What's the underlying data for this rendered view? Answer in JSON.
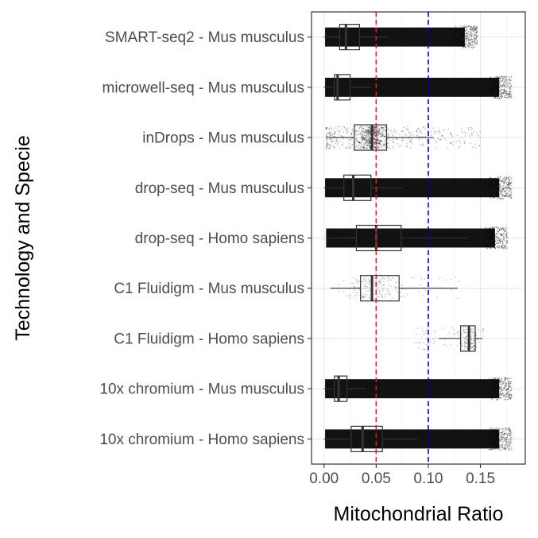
{
  "chart_data": {
    "type": "boxplot-jitter",
    "title": "",
    "xlabel": "Mitochondrial Ratio",
    "ylabel": "Technology and Specie",
    "xlim": [
      -0.012,
      0.193
    ],
    "xticks": [
      0.0,
      0.05,
      0.1,
      0.15
    ],
    "xtick_labels": [
      "0.00",
      "0.05",
      "0.10",
      "0.15"
    ],
    "grid": true,
    "legend": "none",
    "reference_lines": [
      {
        "x": 0.05,
        "color": "#e41a1c",
        "style": "dashed"
      },
      {
        "x": 0.1,
        "color": "#0000cc",
        "style": "dashed"
      }
    ],
    "categories": [
      "SMART-seq2 - Mus musculus",
      "microwell-seq - Mus musculus",
      "inDrops - Mus musculus",
      "drop-seq - Mus musculus",
      "drop-seq - Homo sapiens",
      "C1 Fluidigm - Mus musculus",
      "C1 Fluidigm - Homo sapiens",
      "10x chromium - Mus musculus",
      "10x chromium - Homo sapiens"
    ],
    "boxes": [
      {
        "q1": 0.015,
        "median": 0.021,
        "q3": 0.034,
        "whisker_low": 0.0,
        "whisker_high": 0.062,
        "points_min": 0.001,
        "points_max": 0.147,
        "density": "dense"
      },
      {
        "q1": 0.01,
        "median": 0.013,
        "q3": 0.025,
        "whisker_low": 0.0,
        "whisker_high": 0.045,
        "points_min": 0.001,
        "points_max": 0.18,
        "density": "dense"
      },
      {
        "q1": 0.029,
        "median": 0.046,
        "q3": 0.06,
        "whisker_low": 0.003,
        "whisker_high": 0.105,
        "points_min": 0.002,
        "points_max": 0.15,
        "density": "medium"
      },
      {
        "q1": 0.019,
        "median": 0.028,
        "q3": 0.045,
        "whisker_low": 0.0,
        "whisker_high": 0.075,
        "points_min": 0.001,
        "points_max": 0.18,
        "density": "dense"
      },
      {
        "q1": 0.031,
        "median": 0.05,
        "q3": 0.074,
        "whisker_low": 0.003,
        "whisker_high": 0.138,
        "points_min": 0.002,
        "points_max": 0.176,
        "density": "dense"
      },
      {
        "q1": 0.035,
        "median": 0.046,
        "q3": 0.072,
        "whisker_low": 0.006,
        "whisker_high": 0.128,
        "points_min": 0.005,
        "points_max": 0.13,
        "density": "sparse"
      },
      {
        "q1": 0.131,
        "median": 0.139,
        "q3": 0.145,
        "whisker_low": 0.11,
        "whisker_high": 0.152,
        "points_min": 0.086,
        "points_max": 0.153,
        "density": "sparse"
      },
      {
        "q1": 0.01,
        "median": 0.014,
        "q3": 0.022,
        "whisker_low": 0.0,
        "whisker_high": 0.04,
        "points_min": 0.001,
        "points_max": 0.18,
        "density": "dense"
      },
      {
        "q1": 0.026,
        "median": 0.037,
        "q3": 0.056,
        "whisker_low": 0.0,
        "whisker_high": 0.09,
        "points_min": 0.001,
        "points_max": 0.18,
        "density": "dense"
      }
    ]
  }
}
